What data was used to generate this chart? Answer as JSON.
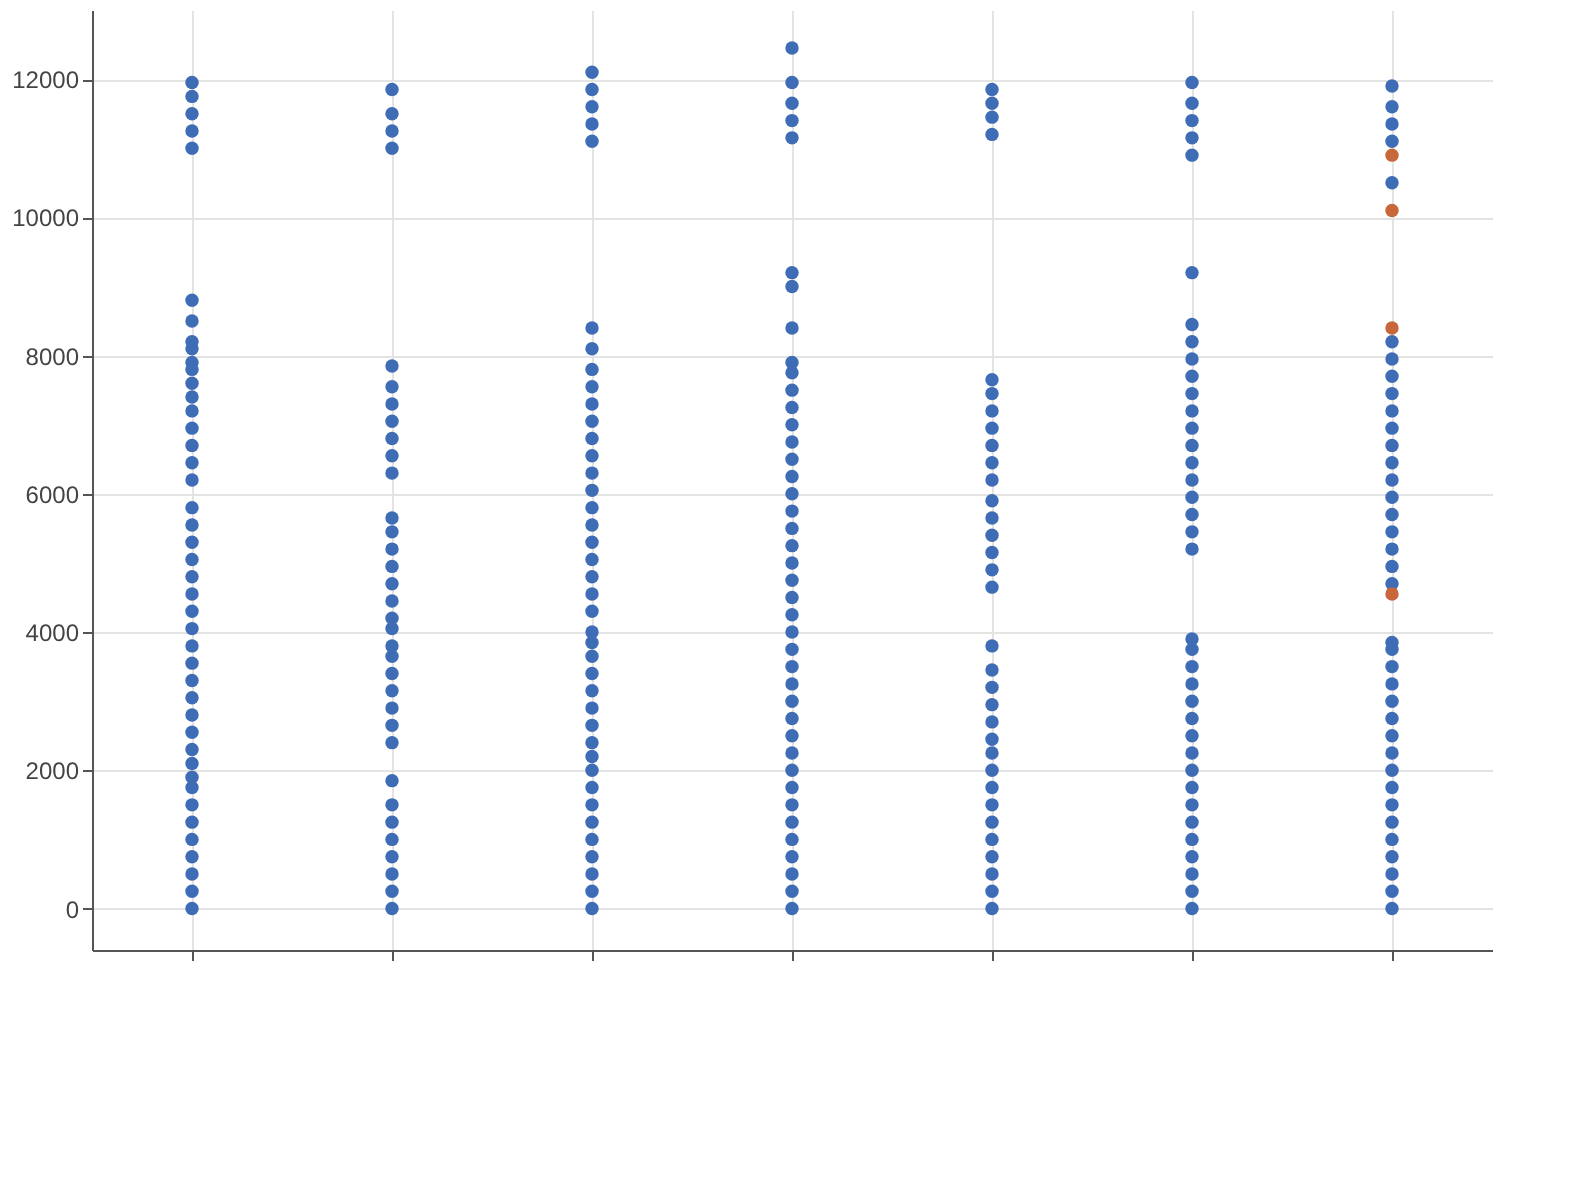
{
  "chart_data": {
    "type": "scatter",
    "marker": "circle",
    "grid": true,
    "legend": false,
    "tick_labels": "y",
    "categories": [
      null,
      null,
      null,
      null,
      null,
      null,
      null
    ],
    "ylim": [
      -600,
      13000
    ],
    "yticks": [
      0,
      2000,
      4000,
      6000,
      8000,
      10000,
      12000
    ],
    "series": [
      {
        "color": "#3f6db5",
        "values": [
          0,
          0,
          0,
          0,
          0,
          0,
          0
        ]
      },
      {
        "color": "#3f6db5",
        "values": [
          250,
          250,
          250,
          250,
          250,
          250,
          250
        ]
      },
      {
        "color": "#3f6db5",
        "values": [
          500,
          500,
          500,
          500,
          500,
          500,
          500
        ]
      },
      {
        "color": "#3f6db5",
        "values": [
          750,
          750,
          750,
          750,
          750,
          750,
          750
        ]
      },
      {
        "color": "#3f6db5",
        "values": [
          1000,
          1000,
          1000,
          1000,
          1000,
          1000,
          1000
        ]
      },
      {
        "color": "#3f6db5",
        "values": [
          1250,
          1250,
          1250,
          1250,
          1250,
          1250,
          1250
        ]
      },
      {
        "color": "#3f6db5",
        "values": [
          1500,
          1500,
          1500,
          1500,
          1500,
          1500,
          1500
        ]
      },
      {
        "color": "#3f6db5",
        "values": [
          1750,
          1850,
          1750,
          1750,
          1750,
          1750,
          1750
        ]
      },
      {
        "color": "#3f6db5",
        "values": [
          1900,
          2400,
          2000,
          2000,
          2000,
          2000,
          2000
        ]
      },
      {
        "color": "#3f6db5",
        "values": [
          2100,
          2650,
          2200,
          2250,
          2250,
          2250,
          2250
        ]
      },
      {
        "color": "#3f6db5",
        "values": [
          2300,
          2900,
          2400,
          2500,
          2450,
          2500,
          2500
        ]
      },
      {
        "color": "#3f6db5",
        "values": [
          2550,
          3150,
          2650,
          2750,
          2700,
          2750,
          2750
        ]
      },
      {
        "color": "#3f6db5",
        "values": [
          2800,
          3400,
          2900,
          3000,
          2950,
          3000,
          3000
        ]
      },
      {
        "color": "#3f6db5",
        "values": [
          3050,
          3650,
          3150,
          3250,
          3200,
          3250,
          3250
        ]
      },
      {
        "color": "#3f6db5",
        "values": [
          3300,
          3800,
          3400,
          3500,
          3450,
          3500,
          3500
        ]
      },
      {
        "color": "#3f6db5",
        "values": [
          3550,
          4050,
          3650,
          3750,
          3800,
          3750,
          3750
        ]
      },
      {
        "color": "#3f6db5",
        "values": [
          3800,
          4200,
          3850,
          4000,
          4650,
          3900,
          3850
        ]
      },
      {
        "color": "#3f6db5",
        "values": [
          4050,
          4450,
          4000,
          4250,
          4900,
          5200,
          4700
        ]
      },
      {
        "color": "#3f6db5",
        "values": [
          4300,
          4700,
          4300,
          4500,
          5150,
          5450,
          4950
        ]
      },
      {
        "color": "#3f6db5",
        "values": [
          4550,
          4950,
          4550,
          4750,
          5400,
          5700,
          5200
        ]
      },
      {
        "color": "#3f6db5",
        "values": [
          4800,
          5200,
          4800,
          5000,
          5650,
          5950,
          5450
        ]
      },
      {
        "color": "#3f6db5",
        "values": [
          5050,
          5450,
          5050,
          5250,
          5900,
          6200,
          5700
        ]
      },
      {
        "color": "#3f6db5",
        "values": [
          5300,
          5650,
          5300,
          5500,
          6200,
          6450,
          5950
        ]
      },
      {
        "color": "#3f6db5",
        "values": [
          5550,
          6300,
          5550,
          5750,
          6450,
          6700,
          6200
        ]
      },
      {
        "color": "#3f6db5",
        "values": [
          5800,
          6550,
          5800,
          6000,
          6700,
          6950,
          6450
        ]
      },
      {
        "color": "#3f6db5",
        "values": [
          6200,
          6800,
          6050,
          6250,
          6950,
          7200,
          6700
        ]
      },
      {
        "color": "#3f6db5",
        "values": [
          6450,
          7050,
          6300,
          6500,
          7200,
          7450,
          6950
        ]
      },
      {
        "color": "#3f6db5",
        "values": [
          6700,
          7300,
          6550,
          6750,
          7450,
          7700,
          7200
        ]
      },
      {
        "color": "#3f6db5",
        "values": [
          6950,
          7550,
          6800,
          7000,
          7650,
          7950,
          7450
        ]
      },
      {
        "color": "#3f6db5",
        "values": [
          7200,
          7850,
          7050,
          7250,
          11200,
          8200,
          7700
        ]
      },
      {
        "color": "#3f6db5",
        "values": [
          7400,
          11000,
          7300,
          7500,
          11450,
          8450,
          7950
        ]
      },
      {
        "color": "#3f6db5",
        "values": [
          7600,
          11250,
          7550,
          7750,
          11650,
          9200,
          8200
        ]
      },
      {
        "color": "#3f6db5",
        "values": [
          7800,
          11500,
          7800,
          7900,
          11850,
          10900,
          10500
        ]
      },
      {
        "color": "#3f6db5",
        "values": [
          7900,
          11850,
          8100,
          8400,
          null,
          11150,
          11100
        ]
      },
      {
        "color": "#3f6db5",
        "values": [
          8100,
          null,
          8400,
          9000,
          null,
          11400,
          11350
        ]
      },
      {
        "color": "#3f6db5",
        "values": [
          8200,
          null,
          11100,
          9200,
          null,
          11650,
          11600
        ]
      },
      {
        "color": "#3f6db5",
        "values": [
          8500,
          null,
          11350,
          11150,
          null,
          11950,
          11900
        ]
      },
      {
        "color": "#3f6db5",
        "values": [
          8800,
          null,
          11600,
          11400,
          null,
          null,
          null
        ]
      },
      {
        "color": "#3f6db5",
        "values": [
          11000,
          null,
          11850,
          11650,
          null,
          null,
          null
        ]
      },
      {
        "color": "#3f6db5",
        "values": [
          11250,
          null,
          12100,
          11950,
          null,
          null,
          null
        ]
      },
      {
        "color": "#3f6db5",
        "values": [
          11500,
          null,
          null,
          12450,
          null,
          null,
          null
        ]
      },
      {
        "color": "#3f6db5",
        "values": [
          11750,
          null,
          null,
          null,
          null,
          null,
          null
        ]
      },
      {
        "color": "#3f6db5",
        "values": [
          11950,
          null,
          null,
          null,
          null,
          null,
          null
        ]
      },
      {
        "color": "#c8683a",
        "values": [
          null,
          null,
          null,
          null,
          null,
          null,
          4550
        ]
      },
      {
        "color": "#c8683a",
        "values": [
          null,
          null,
          null,
          null,
          null,
          null,
          8400
        ]
      },
      {
        "color": "#c8683a",
        "values": [
          null,
          null,
          null,
          null,
          null,
          null,
          10100
        ]
      },
      {
        "color": "#c8683a",
        "values": [
          null,
          null,
          null,
          null,
          null,
          null,
          10900
        ]
      }
    ]
  }
}
